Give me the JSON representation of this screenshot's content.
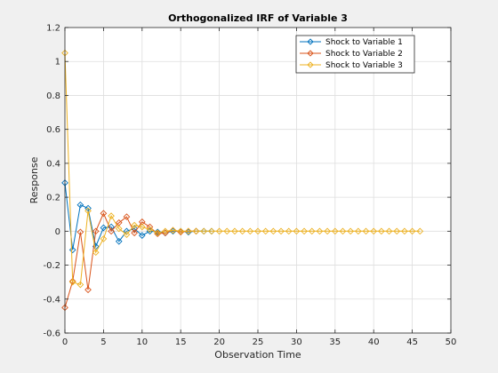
{
  "chart_data": {
    "type": "line",
    "title": "Orthogonalized IRF of Variable 3",
    "xlabel": "Observation Time",
    "ylabel": "Response",
    "xlim": [
      0,
      50
    ],
    "ylim": [
      -0.6,
      1.2
    ],
    "xticks": [
      "0",
      "5",
      "10",
      "15",
      "20",
      "25",
      "30",
      "35",
      "40",
      "45",
      "50"
    ],
    "yticks": [
      "-0.6",
      "-0.4",
      "-0.2",
      "0",
      "0.2",
      "0.4",
      "0.6",
      "0.8",
      "1",
      "1.2"
    ],
    "grid": true,
    "legend_position": "top-right",
    "marker": "diamond",
    "series": [
      {
        "name": "Shock to Variable 1",
        "color": "#0072BD",
        "x": [
          0,
          1,
          2,
          3,
          4,
          5,
          6,
          7,
          8,
          9,
          10,
          11,
          12,
          13,
          14,
          15,
          16,
          17,
          18,
          19
        ],
        "y": [
          0.285,
          -0.11,
          0.155,
          0.135,
          -0.09,
          0.02,
          0.025,
          -0.06,
          0.0,
          0.015,
          -0.025,
          0.0,
          -0.005,
          -0.01,
          0.0,
          0.0,
          -0.005,
          0.0,
          0.0,
          0.0
        ]
      },
      {
        "name": "Shock to Variable 2",
        "color": "#D95319",
        "x": [
          0,
          1,
          2,
          3,
          4,
          5,
          6,
          7,
          8,
          9,
          10,
          11,
          12,
          13,
          14,
          15,
          16,
          17
        ],
        "y": [
          -0.45,
          -0.295,
          -0.005,
          -0.345,
          0.0,
          0.105,
          0.0,
          0.05,
          0.085,
          -0.01,
          0.055,
          0.025,
          -0.015,
          -0.01,
          0.005,
          -0.005,
          0.0,
          0.0
        ]
      },
      {
        "name": "Shock to Variable 3",
        "color": "#EDB120",
        "x": [
          0,
          1,
          2,
          3,
          4,
          5,
          6,
          7,
          8,
          9,
          10,
          11,
          12,
          13,
          14,
          15,
          16,
          17,
          18,
          19,
          20,
          21,
          22,
          23,
          24,
          25,
          26,
          27,
          28,
          29,
          30,
          31,
          32,
          33,
          34,
          35,
          36,
          37,
          38,
          39,
          40,
          41,
          42,
          43,
          44,
          45,
          46
        ],
        "y": [
          1.05,
          -0.3,
          -0.315,
          0.12,
          -0.125,
          -0.045,
          0.09,
          0.015,
          -0.02,
          0.035,
          0.025,
          0.01,
          -0.01,
          0.0,
          0.005,
          0.0,
          0.0,
          0.0,
          0.0,
          0.0,
          0.0,
          0.0,
          0.0,
          0.0,
          0.0,
          0.0,
          0.0,
          0.0,
          0.0,
          0.0,
          0.0,
          0.0,
          0.0,
          0.0,
          0.0,
          0.0,
          0.0,
          0.0,
          0.0,
          0.0,
          0.0,
          0.0,
          0.0,
          0.0,
          0.0,
          0.0,
          0.0
        ]
      }
    ]
  }
}
